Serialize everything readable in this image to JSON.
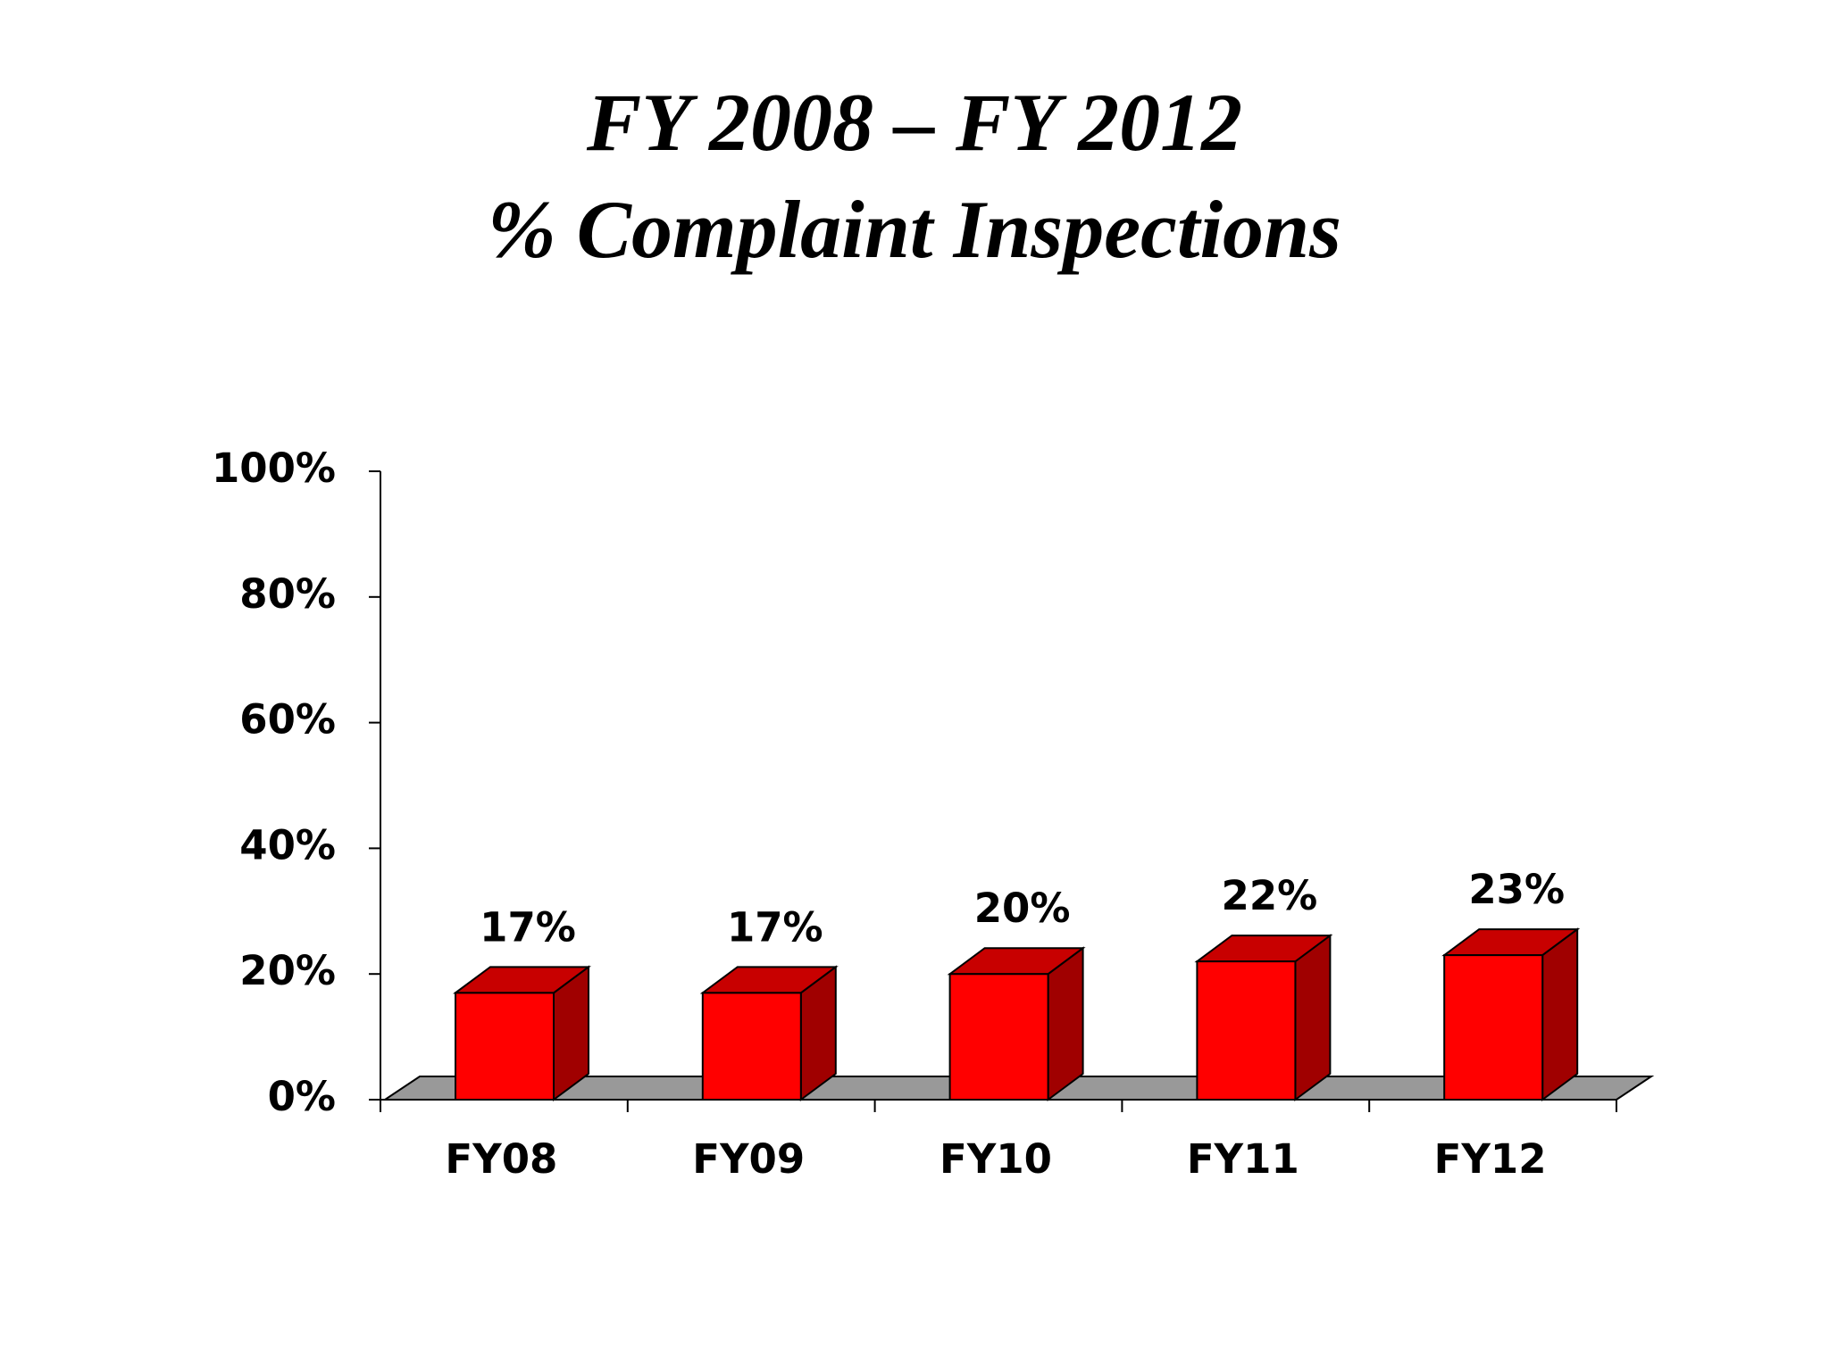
{
  "chart_data": {
    "type": "bar3d",
    "title": [
      "FY 2008 – FY 2012",
      "% Complaint Inspections"
    ],
    "categories": [
      "FY08",
      "FY09",
      "FY10",
      "FY11",
      "FY12"
    ],
    "values": [
      17,
      17,
      20,
      22,
      23
    ],
    "value_labels": [
      "17%",
      "17%",
      "20%",
      "22%",
      "23%"
    ],
    "color": "#ff0000",
    "ylim": [
      0,
      100
    ],
    "yticks": [
      {
        "value": 0,
        "label": "0%"
      },
      {
        "value": 20,
        "label": "20%"
      },
      {
        "value": 40,
        "label": "40%"
      },
      {
        "value": 60,
        "label": "60%"
      },
      {
        "value": 80,
        "label": "80%"
      },
      {
        "value": 100,
        "label": "100%"
      }
    ]
  }
}
